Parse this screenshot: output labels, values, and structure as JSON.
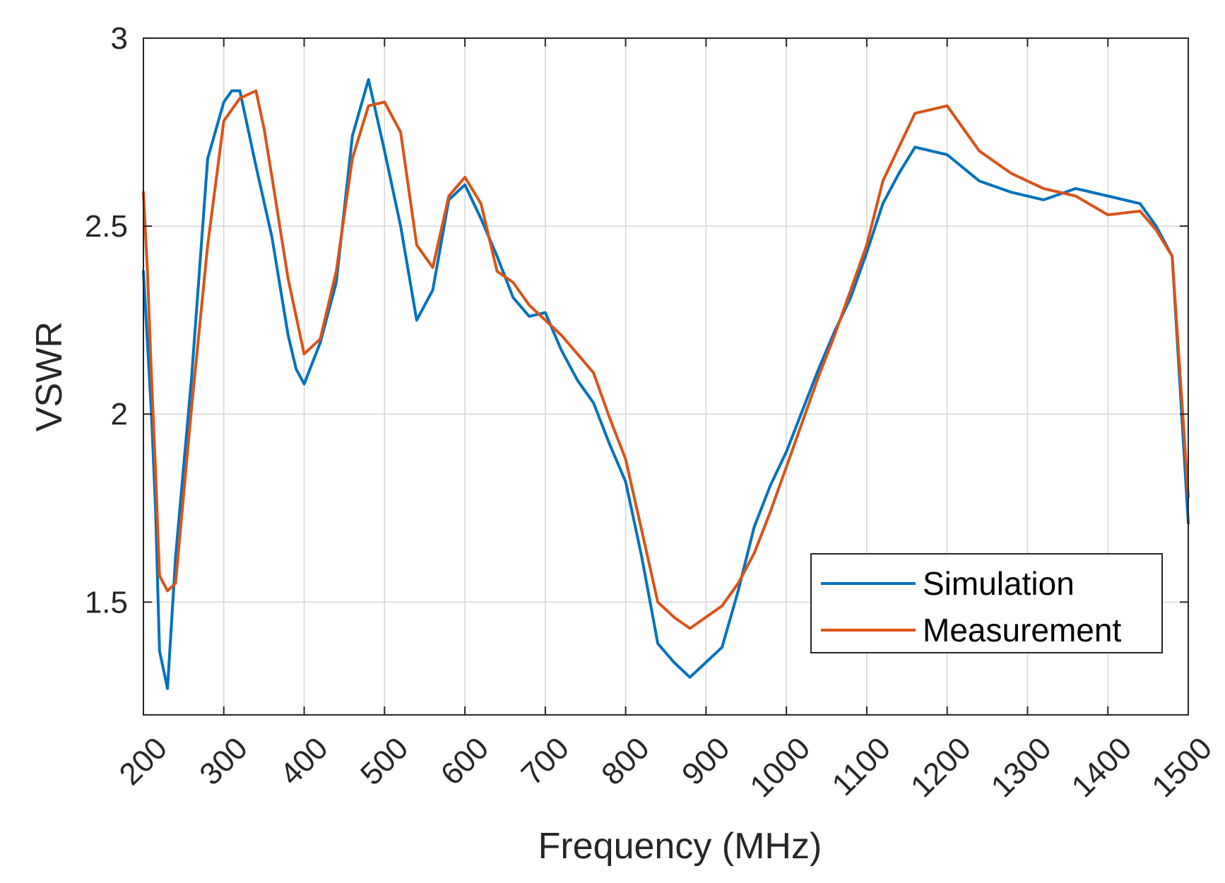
{
  "chart_data": {
    "type": "line",
    "title": "",
    "xlabel": "Frequency (MHz)",
    "ylabel": "VSWR",
    "xlim": [
      200,
      1500
    ],
    "ylim": [
      1.2,
      3
    ],
    "grid": true,
    "legend_position": "lower-right",
    "x_ticks": [
      200,
      300,
      400,
      500,
      600,
      700,
      800,
      900,
      1000,
      1100,
      1200,
      1300,
      1400,
      1500
    ],
    "x_tick_labels": [
      "200",
      "300",
      "400",
      "500",
      "600",
      "700",
      "800",
      "900",
      "1000",
      "1100",
      "1200",
      "1300",
      "1400",
      "1500"
    ],
    "y_ticks": [
      1.5,
      2,
      2.5,
      3
    ],
    "y_tick_labels": [
      "1.5",
      "2",
      "2.5",
      "3"
    ],
    "series": [
      {
        "name": "Simulation",
        "color": "#0072BD",
        "x": [
          200,
          210,
          215,
          220,
          230,
          240,
          260,
          280,
          300,
          310,
          320,
          340,
          360,
          380,
          390,
          400,
          420,
          440,
          460,
          480,
          500,
          520,
          540,
          560,
          580,
          600,
          620,
          640,
          660,
          680,
          700,
          720,
          740,
          760,
          780,
          800,
          820,
          840,
          860,
          880,
          900,
          920,
          940,
          960,
          980,
          1000,
          1020,
          1040,
          1060,
          1080,
          1100,
          1120,
          1140,
          1160,
          1200,
          1240,
          1280,
          1320,
          1360,
          1400,
          1440,
          1460,
          1480,
          1500
        ],
        "y": [
          2.38,
          2.0,
          1.75,
          1.37,
          1.27,
          1.62,
          2.1,
          2.68,
          2.83,
          2.86,
          2.86,
          2.66,
          2.47,
          2.21,
          2.12,
          2.08,
          2.19,
          2.35,
          2.74,
          2.89,
          2.7,
          2.5,
          2.25,
          2.33,
          2.57,
          2.61,
          2.52,
          2.42,
          2.31,
          2.26,
          2.27,
          2.17,
          2.09,
          2.03,
          1.92,
          1.82,
          1.62,
          1.39,
          1.34,
          1.3,
          1.34,
          1.38,
          1.53,
          1.7,
          1.81,
          1.9,
          2.01,
          2.12,
          2.22,
          2.31,
          2.43,
          2.56,
          2.64,
          2.71,
          2.69,
          2.62,
          2.59,
          2.57,
          2.6,
          2.58,
          2.56,
          2.5,
          2.42,
          1.71
        ]
      },
      {
        "name": "Measurement",
        "color": "#D95319",
        "x": [
          200,
          205,
          210,
          215,
          220,
          230,
          240,
          260,
          280,
          300,
          320,
          340,
          350,
          360,
          380,
          400,
          420,
          440,
          460,
          480,
          500,
          520,
          540,
          560,
          580,
          600,
          620,
          640,
          660,
          680,
          700,
          720,
          740,
          760,
          780,
          800,
          820,
          840,
          860,
          880,
          900,
          920,
          940,
          960,
          980,
          1000,
          1020,
          1040,
          1060,
          1080,
          1100,
          1120,
          1140,
          1160,
          1200,
          1240,
          1280,
          1320,
          1360,
          1400,
          1440,
          1460,
          1480,
          1500
        ],
        "y": [
          2.59,
          2.38,
          2.1,
          1.85,
          1.57,
          1.53,
          1.55,
          2.02,
          2.45,
          2.78,
          2.84,
          2.86,
          2.76,
          2.63,
          2.36,
          2.16,
          2.2,
          2.38,
          2.68,
          2.82,
          2.83,
          2.75,
          2.45,
          2.39,
          2.58,
          2.63,
          2.56,
          2.38,
          2.35,
          2.29,
          2.25,
          2.21,
          2.16,
          2.11,
          1.99,
          1.88,
          1.69,
          1.5,
          1.46,
          1.43,
          1.46,
          1.49,
          1.55,
          1.63,
          1.74,
          1.86,
          1.98,
          2.1,
          2.21,
          2.33,
          2.45,
          2.62,
          2.71,
          2.8,
          2.82,
          2.7,
          2.64,
          2.6,
          2.58,
          2.53,
          2.54,
          2.49,
          2.42,
          1.78
        ]
      }
    ]
  }
}
